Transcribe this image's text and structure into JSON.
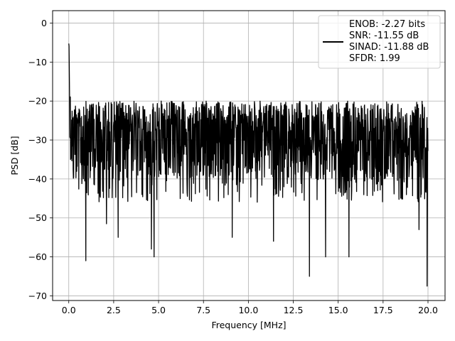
{
  "chart_data": {
    "type": "line",
    "xlabel": "Frequency [MHz]",
    "ylabel": "PSD [dB]",
    "xlim": [
      -0.9,
      20.95
    ],
    "ylim": [
      -71.2,
      3.2
    ],
    "xticks": [
      0.0,
      2.5,
      5.0,
      7.5,
      10.0,
      12.5,
      15.0,
      17.5,
      20.0
    ],
    "xtick_labels": [
      "0.0",
      "2.5",
      "5.0",
      "7.5",
      "10.0",
      "12.5",
      "15.0",
      "17.5",
      "20.0"
    ],
    "yticks": [
      0,
      -10,
      -20,
      -30,
      -40,
      -50,
      -60,
      -70
    ],
    "ytick_labels": [
      "0",
      "−10",
      "−20",
      "−30",
      "−40",
      "−50",
      "−60",
      "−70"
    ],
    "grid": true,
    "legend_position": "upper-right",
    "legend_lines": [
      "ENOB: -2.27 bits",
      "SNR: -11.55 dB",
      "SINAD: -11.88 dB",
      "SFDR: 1.99"
    ],
    "line_color": "#000000",
    "series": [
      {
        "envelope": {
          "x_range": [
            0.0,
            20.0
          ],
          "peak_at_dc": 0,
          "typical_upper": -22,
          "typical_lower": -40
        },
        "notable_dips": [
          {
            "x": 0.95,
            "y": -61
          },
          {
            "x": 2.1,
            "y": -51.5
          },
          {
            "x": 2.75,
            "y": -55
          },
          {
            "x": 4.6,
            "y": -58
          },
          {
            "x": 4.75,
            "y": -60
          },
          {
            "x": 9.1,
            "y": -55
          },
          {
            "x": 11.4,
            "y": -56
          },
          {
            "x": 13.4,
            "y": -65
          },
          {
            "x": 14.3,
            "y": -60
          },
          {
            "x": 15.6,
            "y": -60
          },
          {
            "x": 19.5,
            "y": -53
          },
          {
            "x": 19.95,
            "y": -67.5
          }
        ]
      }
    ]
  }
}
